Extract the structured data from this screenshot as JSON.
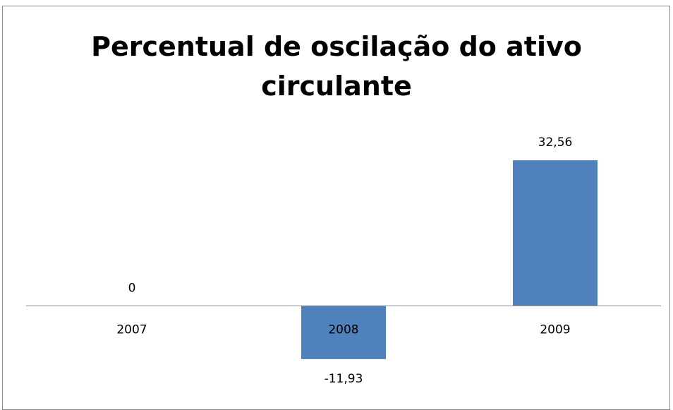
{
  "chart_data": {
    "type": "bar",
    "title": "Percentual de oscilação do ativo circulante",
    "categories": [
      "2007",
      "2008",
      "2009"
    ],
    "values": [
      0,
      -11.93,
      32.56
    ],
    "value_labels": [
      "0",
      "-11,93",
      "32,56"
    ],
    "color": "#4f81bd",
    "ylim": [
      -20,
      40
    ]
  }
}
